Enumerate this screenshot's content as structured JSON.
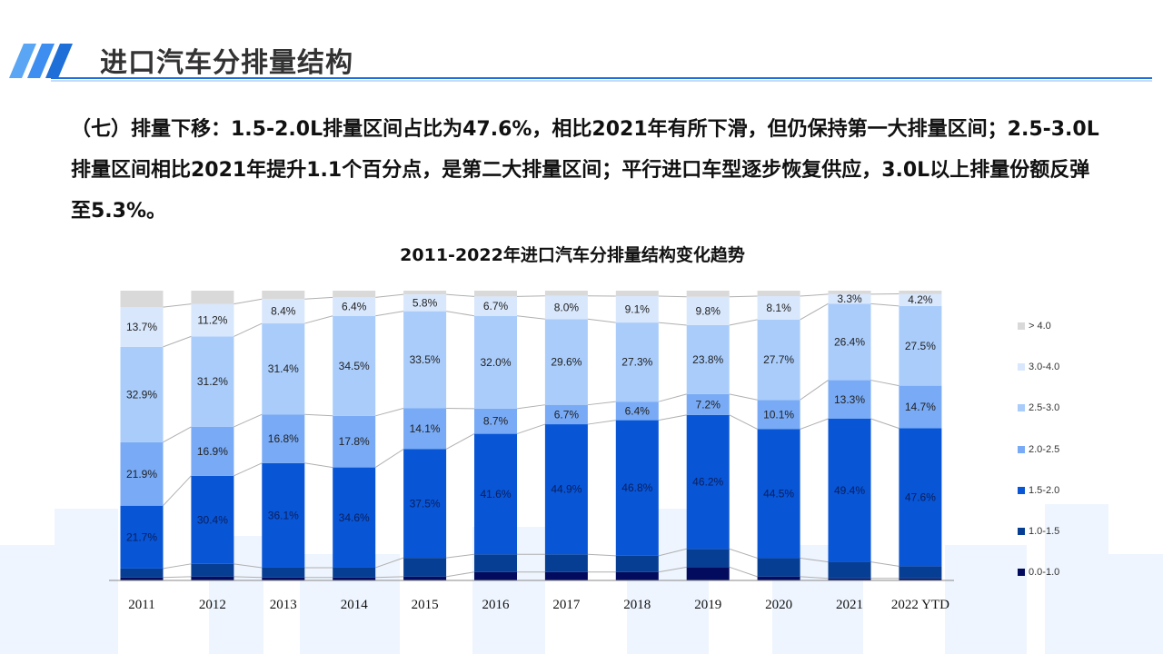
{
  "header": {
    "title": "进口汽车分排量结构",
    "accent": "#1f6fd8"
  },
  "body": {
    "paragraph": "（七）排量下移：1.5-2.0L排量区间占比为47.6%，相比2021年有所下滑，但仍保持第一大排量区间；2.5-3.0L排量区间相比2021年提升1.1个百分点，是第二大排量区间；平行进口车型逐步恢复供应，3.0L以上排量份额反弹至5.3%。"
  },
  "chart_data": {
    "type": "bar",
    "stacked": true,
    "normalized": true,
    "title": "2011-2022年进口汽车分排量结构变化趋势",
    "categories": [
      "2011",
      "2012",
      "2013",
      "2014",
      "2015",
      "2016",
      "2017",
      "2018",
      "2019",
      "2020",
      "2021",
      "2022 YTD"
    ],
    "ylim": [
      0,
      100
    ],
    "grid": false,
    "legend_position": "right",
    "series": [
      {
        "name": "0.0-1.0",
        "color": "#020b5e",
        "labeled": false,
        "values": [
          1.0,
          1.3,
          1.0,
          1.0,
          1.3,
          2.9,
          2.9,
          2.9,
          4.6,
          1.3,
          0.7,
          0.7
        ]
      },
      {
        "name": "1.0-1.5",
        "color": "#063e94",
        "labeled": false,
        "values": [
          3.1,
          4.4,
          3.4,
          3.4,
          6.5,
          6.1,
          6.1,
          5.6,
          6.3,
          6.4,
          5.7,
          4.2
        ]
      },
      {
        "name": "1.5-2.0",
        "color": "#0855d6",
        "labeled": true,
        "values": [
          21.7,
          30.4,
          36.1,
          34.6,
          37.5,
          41.6,
          44.9,
          46.8,
          46.2,
          44.5,
          49.4,
          47.6
        ]
      },
      {
        "name": "2.0-2.5",
        "color": "#78aaf5",
        "labeled": true,
        "values": [
          21.9,
          16.9,
          16.8,
          17.8,
          14.1,
          8.7,
          6.7,
          6.4,
          7.2,
          10.1,
          13.3,
          14.7
        ]
      },
      {
        "name": "2.5-3.0",
        "color": "#a9ccfb",
        "labeled": true,
        "values": [
          32.9,
          31.2,
          31.4,
          34.5,
          33.5,
          32.0,
          29.6,
          27.3,
          23.8,
          27.7,
          26.4,
          27.5
        ]
      },
      {
        "name": "3.0-4.0",
        "color": "#d8e7fc",
        "labeled": true,
        "values": [
          13.7,
          11.2,
          8.4,
          6.4,
          5.8,
          6.7,
          8.0,
          9.1,
          9.8,
          8.1,
          3.3,
          4.2
        ]
      },
      {
        "name": "> 4.0",
        "color": "#d9d9d9",
        "labeled": false,
        "values": [
          5.7,
          4.6,
          2.9,
          2.3,
          1.3,
          2.0,
          1.8,
          1.9,
          2.1,
          1.9,
          1.2,
          1.1
        ]
      }
    ]
  }
}
